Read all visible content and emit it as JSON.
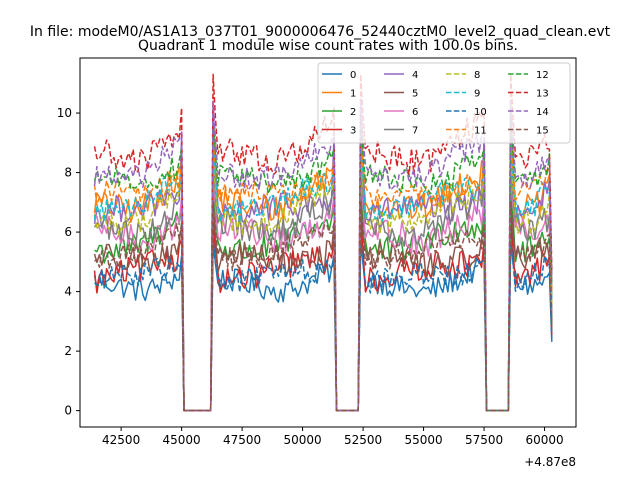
{
  "chart_data": {
    "type": "line",
    "suptitle": "In file: modeM0/AS1A13_037T01_9000006476_52440cztM0_level2_quad_clean.evt",
    "title": "Quadrant 1 module wise count rates with 100.0s bins.",
    "xlabel": "",
    "ylabel": "",
    "offset_label": "+4.87e8",
    "xlim": [
      40800,
      61300
    ],
    "ylim": [
      -0.55,
      11.85
    ],
    "x_ticks": [
      42500,
      45000,
      47500,
      50000,
      52500,
      55000,
      57500,
      60000
    ],
    "x_tick_labels": [
      "42500",
      "45000",
      "47500",
      "50000",
      "52500",
      "55000",
      "57500",
      "60000"
    ],
    "y_ticks": [
      0,
      2,
      4,
      6,
      8,
      10
    ],
    "y_tick_labels": [
      "0",
      "2",
      "4",
      "6",
      "8",
      "10"
    ],
    "legend": {
      "placement": "top-right",
      "columns": 4
    },
    "x_start": 41400,
    "x_step": 100,
    "segments": [
      {
        "on_start": 41400,
        "on_end": 45000,
        "off_start": 45100,
        "off_end": 46200
      },
      {
        "on_start": 46300,
        "on_end": 51300,
        "off_start": 51400,
        "off_end": 52300
      },
      {
        "on_start": 52400,
        "on_end": 57500,
        "off_start": 57600,
        "off_end": 58500
      },
      {
        "on_start": 58600,
        "on_end": 60300,
        "off_start": null,
        "off_end": null
      }
    ],
    "series": [
      {
        "name": "0",
        "color": "#1f77b4",
        "dash": "solid",
        "base": 4.2,
        "jitter": 0.25,
        "spike": 5.8
      },
      {
        "name": "1",
        "color": "#ff7f0e",
        "dash": "solid",
        "base": 7.0,
        "jitter": 0.3,
        "spike": 9.2
      },
      {
        "name": "2",
        "color": "#2ca02c",
        "dash": "solid",
        "base": 5.6,
        "jitter": 0.3,
        "spike": 7.6
      },
      {
        "name": "3",
        "color": "#d62728",
        "dash": "solid",
        "base": 4.6,
        "jitter": 0.3,
        "spike": 6.4
      },
      {
        "name": "4",
        "color": "#9467bd",
        "dash": "solid",
        "base": 6.6,
        "jitter": 0.3,
        "spike": 10.2
      },
      {
        "name": "5",
        "color": "#8c564b",
        "dash": "solid",
        "base": 5.0,
        "jitter": 0.3,
        "spike": 6.9
      },
      {
        "name": "6",
        "color": "#e377c2",
        "dash": "solid",
        "base": 5.9,
        "jitter": 0.3,
        "spike": 8.0
      },
      {
        "name": "7",
        "color": "#7f7f7f",
        "dash": "solid",
        "base": 6.2,
        "jitter": 0.3,
        "spike": 8.4
      },
      {
        "name": "8",
        "color": "#bcbd22",
        "dash": "dashed",
        "base": 6.5,
        "jitter": 0.25,
        "spike": 8.6
      },
      {
        "name": "9",
        "color": "#17becf",
        "dash": "dashed",
        "base": 6.9,
        "jitter": 0.25,
        "spike": 9.0
      },
      {
        "name": "10",
        "color": "#1f77b4",
        "dash": "dashed",
        "base": 4.4,
        "jitter": 0.25,
        "spike": 5.6
      },
      {
        "name": "11",
        "color": "#ff7f0e",
        "dash": "dashed",
        "base": 7.2,
        "jitter": 0.25,
        "spike": 9.4
      },
      {
        "name": "12",
        "color": "#2ca02c",
        "dash": "dashed",
        "base": 7.7,
        "jitter": 0.25,
        "spike": 9.8
      },
      {
        "name": "13",
        "color": "#d62728",
        "dash": "dashed",
        "base": 8.6,
        "jitter": 0.3,
        "spike": 11.3
      },
      {
        "name": "14",
        "color": "#9467bd",
        "dash": "dashed",
        "base": 8.0,
        "jitter": 0.25,
        "spike": 10.4
      },
      {
        "name": "15",
        "color": "#8c564b",
        "dash": "dashed",
        "base": 5.3,
        "jitter": 0.25,
        "spike": 7.0
      }
    ]
  }
}
